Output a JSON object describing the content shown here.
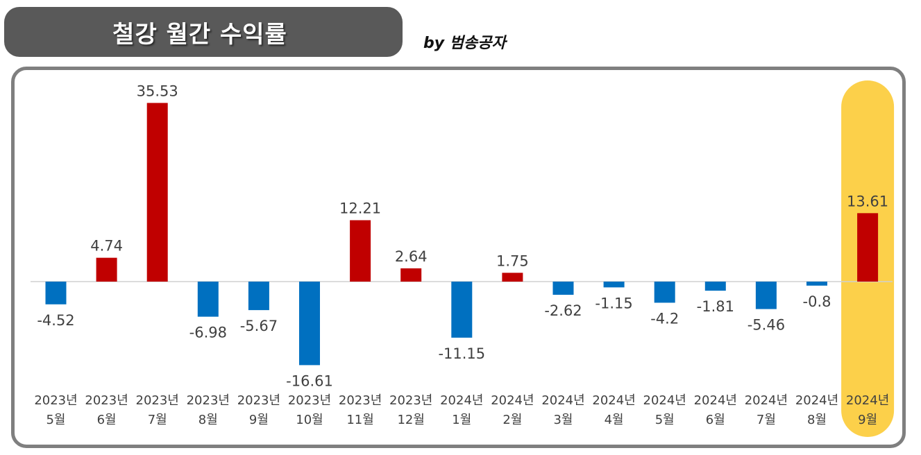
{
  "header": {
    "title": "철강 월간 수익률",
    "byline": "by 범송공자"
  },
  "colors": {
    "positive": "#c00000",
    "negative": "#0070c0",
    "highlight": "#fcd04a",
    "frame": "#7f7f7f",
    "title_bg": "#595959"
  },
  "chart_data": {
    "type": "bar",
    "categories": [
      {
        "year": "2023년",
        "month": "5월"
      },
      {
        "year": "2023년",
        "month": "6월"
      },
      {
        "year": "2023년",
        "month": "7월"
      },
      {
        "year": "2023년",
        "month": "8월"
      },
      {
        "year": "2023년",
        "month": "9월"
      },
      {
        "year": "2023년",
        "month": "10월"
      },
      {
        "year": "2023년",
        "month": "11월"
      },
      {
        "year": "2023년",
        "month": "12월"
      },
      {
        "year": "2024년",
        "month": "1월"
      },
      {
        "year": "2024년",
        "month": "2월"
      },
      {
        "year": "2024년",
        "month": "3월"
      },
      {
        "year": "2024년",
        "month": "4월"
      },
      {
        "year": "2024년",
        "month": "5월"
      },
      {
        "year": "2024년",
        "month": "6월"
      },
      {
        "year": "2024년",
        "month": "7월"
      },
      {
        "year": "2024년",
        "month": "8월"
      },
      {
        "year": "2024년",
        "month": "9월"
      }
    ],
    "values": [
      -4.52,
      4.74,
      35.53,
      -6.98,
      -5.67,
      -16.61,
      12.21,
      2.64,
      -11.15,
      1.75,
      -2.62,
      -1.15,
      -4.2,
      -1.81,
      -5.46,
      -0.8,
      13.61
    ],
    "value_labels": [
      "-4.52",
      "4.74",
      "35.53",
      "-6.98",
      "-5.67",
      "-16.61",
      "12.21",
      "2.64",
      "-11.15",
      "1.75",
      "-2.62",
      "-1.15",
      "-4.2",
      "-1.81",
      "-5.46",
      "-0.8",
      "13.61"
    ],
    "highlight_index": 16,
    "grid": false,
    "legend": "none"
  }
}
